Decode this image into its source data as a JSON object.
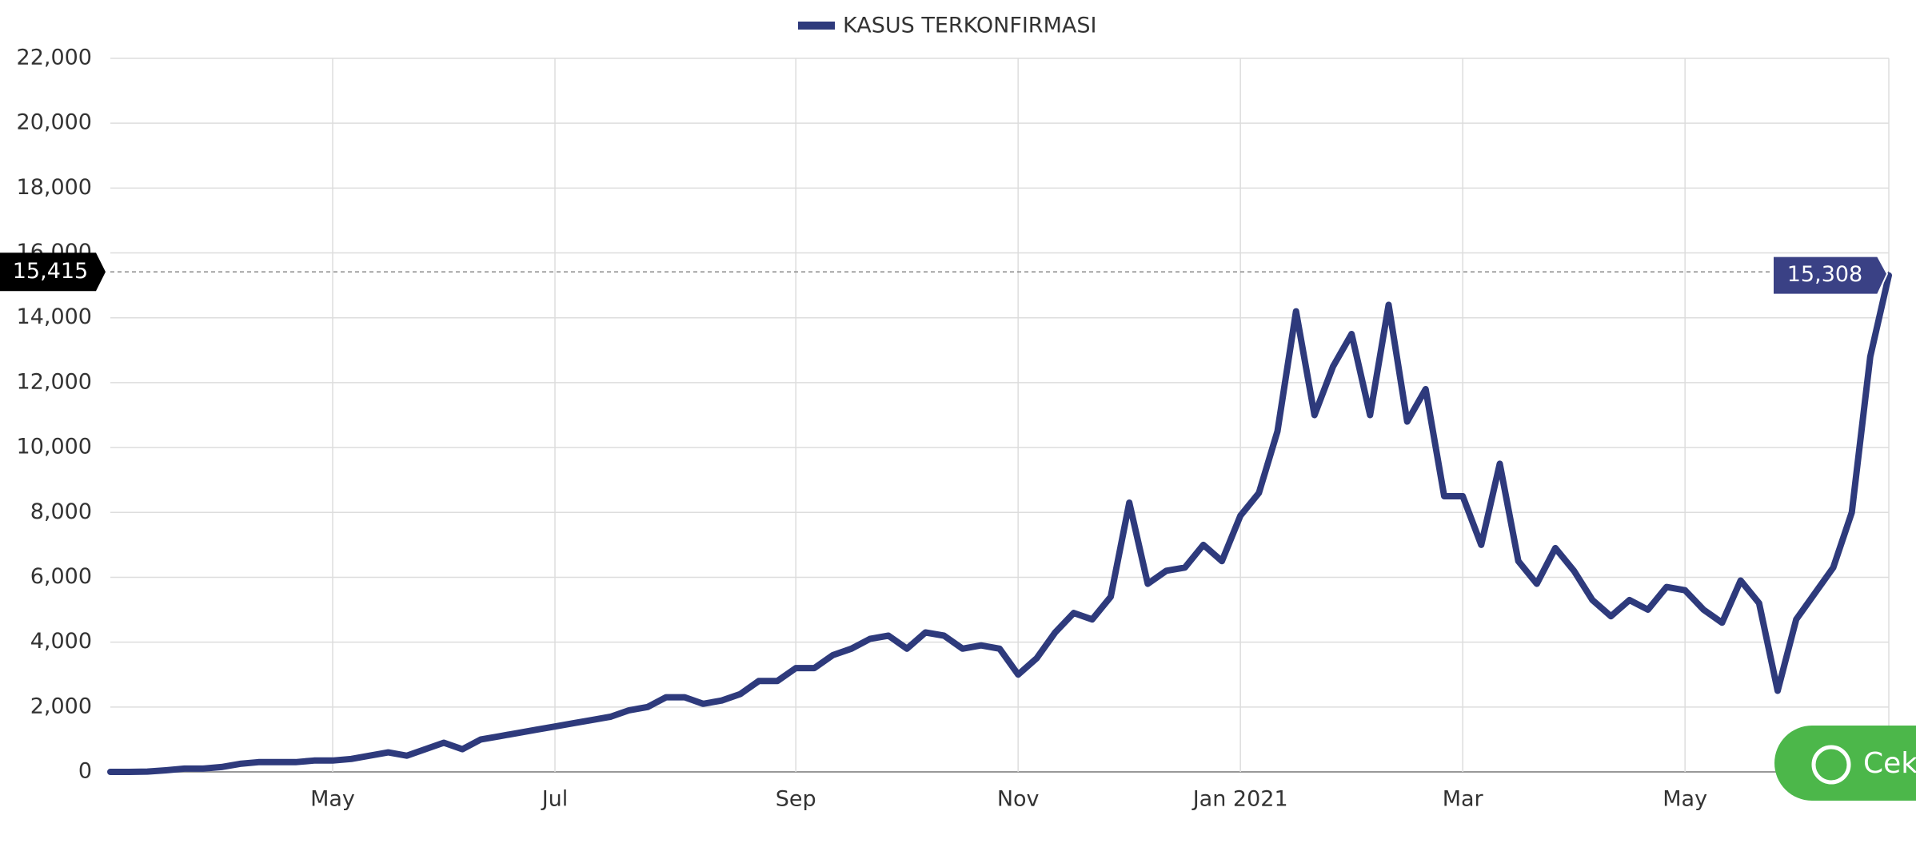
{
  "chart_data": {
    "type": "line",
    "legend": "top",
    "grid": true,
    "crosshair": {
      "value": 15415,
      "label": "15,415"
    },
    "button": "Cek",
    "categories": [
      null,
      null,
      null,
      null,
      null,
      null,
      null,
      null,
      null,
      null,
      null,
      null,
      "May",
      null,
      null,
      null,
      null,
      null,
      null,
      null,
      null,
      null,
      null,
      null,
      "Jul",
      null,
      null,
      null,
      null,
      null,
      null,
      null,
      null,
      null,
      null,
      null,
      null,
      "Sep",
      null,
      null,
      null,
      null,
      null,
      null,
      null,
      null,
      null,
      null,
      null,
      "Nov",
      null,
      null,
      null,
      null,
      null,
      null,
      null,
      null,
      null,
      null,
      null,
      "Jan 2021",
      null,
      null,
      null,
      null,
      null,
      null,
      null,
      null,
      null,
      null,
      null,
      "Mar",
      null,
      null,
      null,
      null,
      null,
      null,
      null,
      null,
      null,
      null,
      null,
      "May",
      null,
      null,
      null,
      null,
      null,
      null,
      null,
      null,
      null,
      null,
      null
    ],
    "series": [
      {
        "name": "KASUS TERKONFIRMASI",
        "color": "#2e3a7c",
        "values": [
          0,
          0,
          10,
          50,
          100,
          100,
          150,
          250,
          300,
          300,
          300,
          350,
          350,
          400,
          500,
          600,
          500,
          700,
          900,
          700,
          1000,
          1100,
          1200,
          1300,
          1400,
          1500,
          1600,
          1700,
          1900,
          2000,
          2300,
          2300,
          2100,
          2200,
          2400,
          2800,
          2800,
          3200,
          3200,
          3600,
          3800,
          4100,
          4200,
          3800,
          4300,
          4200,
          3800,
          3900,
          3800,
          3000,
          3500,
          4300,
          4900,
          4700,
          5400,
          8300,
          5800,
          6200,
          6300,
          7000,
          6500,
          7900,
          8600,
          10500,
          14200,
          11000,
          12500,
          13500,
          11000,
          14400,
          10800,
          11800,
          8500,
          8500,
          7000,
          9500,
          6500,
          5800,
          6900,
          6200,
          5300,
          4800,
          5300,
          5000,
          5700,
          5600,
          5000,
          4600,
          5900,
          5200,
          2500,
          4700,
          5500,
          6300,
          8000,
          12800,
          15308
        ],
        "value_labels": [
          null,
          null,
          null,
          null,
          null,
          null,
          null,
          null,
          null,
          null,
          null,
          null,
          null,
          null,
          null,
          null,
          null,
          null,
          null,
          null,
          null,
          null,
          null,
          null,
          null,
          null,
          null,
          null,
          null,
          null,
          null,
          null,
          null,
          null,
          null,
          null,
          null,
          null,
          null,
          null,
          null,
          null,
          null,
          null,
          null,
          null,
          null,
          null,
          null,
          null,
          null,
          null,
          null,
          null,
          null,
          null,
          null,
          null,
          null,
          null,
          null,
          null,
          null,
          null,
          null,
          null,
          null,
          null,
          null,
          null,
          null,
          null,
          null,
          null,
          null,
          null,
          null,
          null,
          null,
          null,
          null,
          null,
          null,
          null,
          null,
          null,
          null,
          null,
          null,
          null,
          null,
          null,
          null,
          null,
          null,
          null,
          "15,308"
        ]
      }
    ],
    "ylim": [
      0,
      22000
    ],
    "yticks": [
      0,
      {
        "value": 2000,
        "label": "2,000"
      },
      {
        "value": 4000,
        "label": "4,000"
      },
      {
        "value": 6000,
        "label": "6,000"
      },
      {
        "value": 8000,
        "label": "8,000"
      },
      {
        "value": 10000,
        "label": "10,000"
      },
      {
        "value": 12000,
        "label": "12,000"
      },
      {
        "value": 14000,
        "label": "14,000"
      },
      {
        "value": 16000,
        "label": "16,000"
      },
      {
        "value": 18000,
        "label": "18,000"
      },
      {
        "value": 20000,
        "label": "20,000"
      },
      {
        "value": 22000,
        "label": "22,000"
      }
    ]
  }
}
